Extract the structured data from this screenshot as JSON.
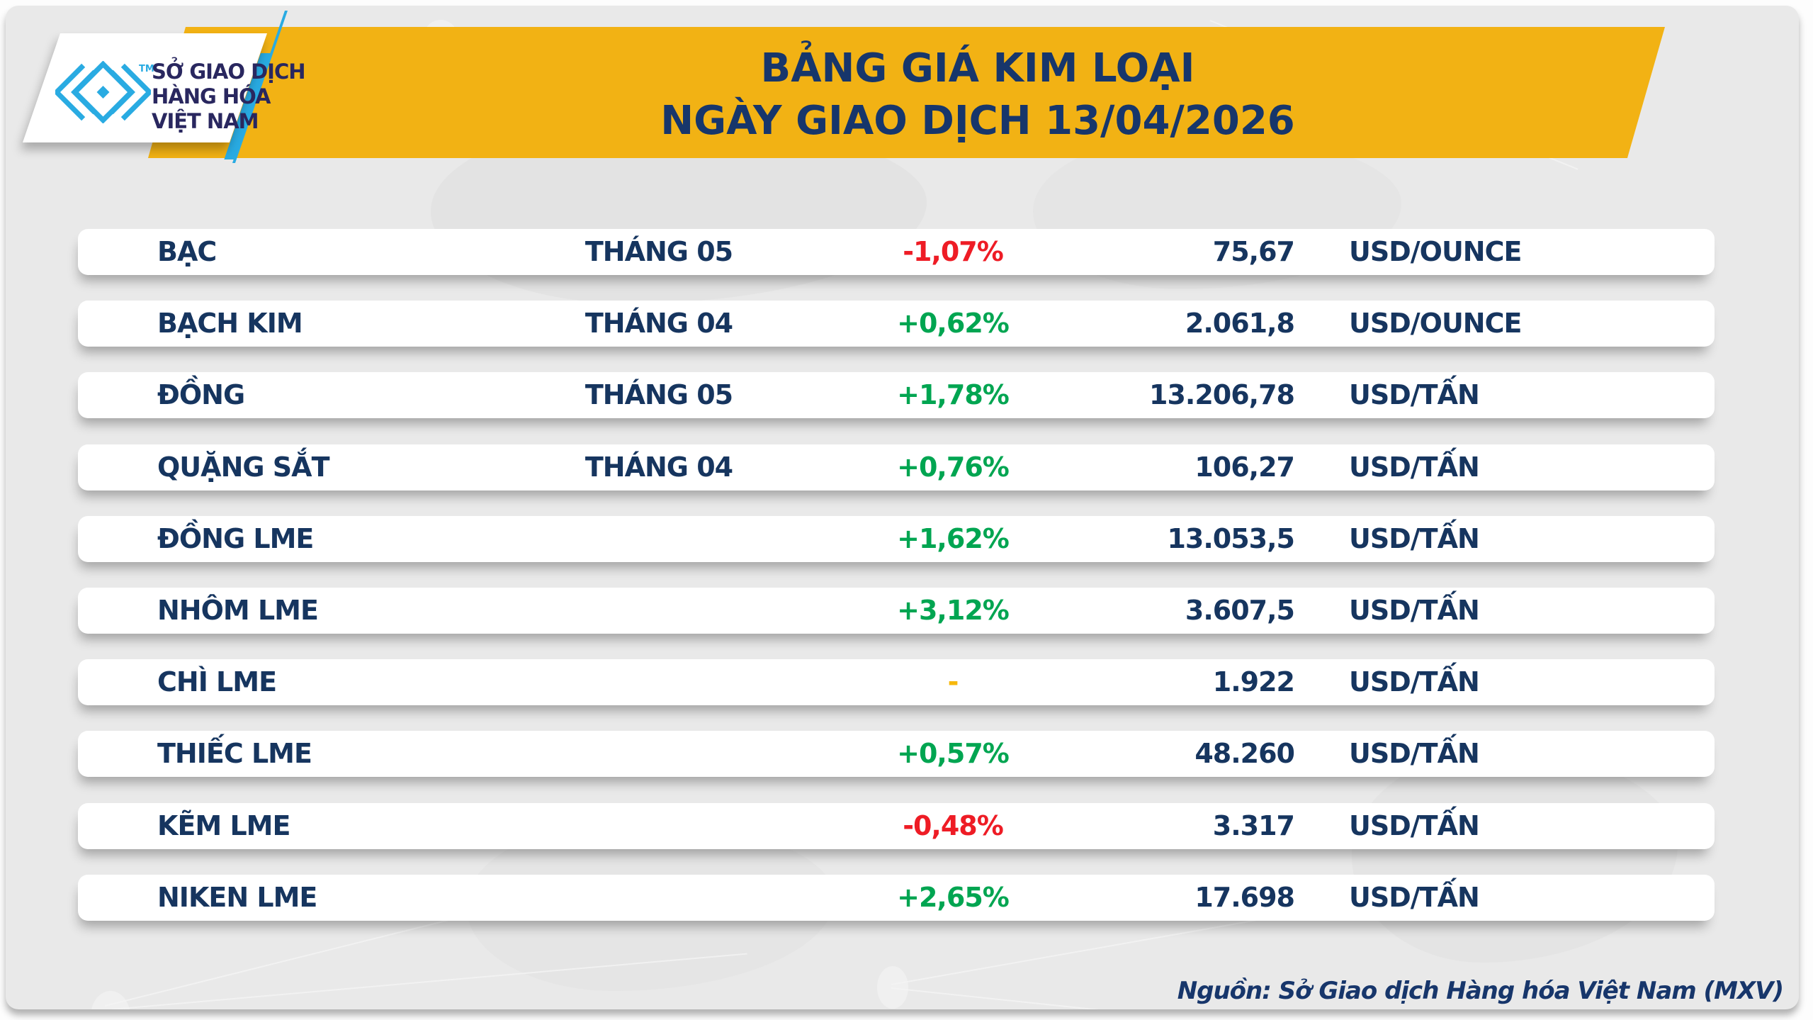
{
  "header": {
    "title_line1": "BẢNG GIÁ KIM LOẠI",
    "title_line2": "NGÀY GIAO DỊCH 13/04/2026"
  },
  "logo": {
    "trademark": "TM",
    "org_line1": "SỞ GIAO DỊCH",
    "org_line2": "HÀNG HÓA",
    "org_line3": "VIỆT NAM"
  },
  "footer": {
    "source": "Nguồn: Sở Giao dịch Hàng hóa Việt Nam (MXV)"
  },
  "colors": {
    "banner_yellow": "#f2b214",
    "navy_text": "#17366b",
    "row_navy": "#16355f",
    "positive_green": "#00a551",
    "negative_red": "#ee1c25",
    "flat_yellow": "#f7b80b",
    "brand_cyan": "#29abe2",
    "card_gray": "#e9e9e9"
  },
  "chart_data": {
    "type": "table",
    "title": "BẢNG GIÁ KIM LOẠI",
    "subtitle": "NGÀY GIAO DỊCH 13/04/2026",
    "source": "Nguồn: Sở Giao dịch Hàng hóa Việt Nam (MXV)",
    "rows": [
      {
        "name": "BẠC",
        "month": "THÁNG 05",
        "change": "-1,07%",
        "trend": "down",
        "price": "75,67",
        "unit": "USD/OUNCE"
      },
      {
        "name": "BẠCH KIM",
        "month": "THÁNG 04",
        "change": "+0,62%",
        "trend": "up",
        "price": "2.061,8",
        "unit": "USD/OUNCE"
      },
      {
        "name": "ĐỒNG",
        "month": "THÁNG 05",
        "change": "+1,78%",
        "trend": "up",
        "price": "13.206,78",
        "unit": "USD/TẤN"
      },
      {
        "name": "QUẶNG SẮT",
        "month": "THÁNG 04",
        "change": "+0,76%",
        "trend": "up",
        "price": "106,27",
        "unit": "USD/TẤN"
      },
      {
        "name": "ĐỒNG LME",
        "month": "",
        "change": "+1,62%",
        "trend": "up",
        "price": "13.053,5",
        "unit": "USD/TẤN"
      },
      {
        "name": "NHÔM LME",
        "month": "",
        "change": "+3,12%",
        "trend": "up",
        "price": "3.607,5",
        "unit": "USD/TẤN"
      },
      {
        "name": "CHÌ LME",
        "month": "",
        "change": "-",
        "trend": "flat",
        "price": "1.922",
        "unit": "USD/TẤN"
      },
      {
        "name": "THIẾC LME",
        "month": "",
        "change": "+0,57%",
        "trend": "up",
        "price": "48.260",
        "unit": "USD/TẤN"
      },
      {
        "name": "KẼM LME",
        "month": "",
        "change": "-0,48%",
        "trend": "down",
        "price": "3.317",
        "unit": "USD/TẤN"
      },
      {
        "name": "NIKEN LME",
        "month": "",
        "change": "+2,65%",
        "trend": "up",
        "price": "17.698",
        "unit": "USD/TẤN"
      }
    ]
  },
  "table": {
    "row_count": 10
  }
}
